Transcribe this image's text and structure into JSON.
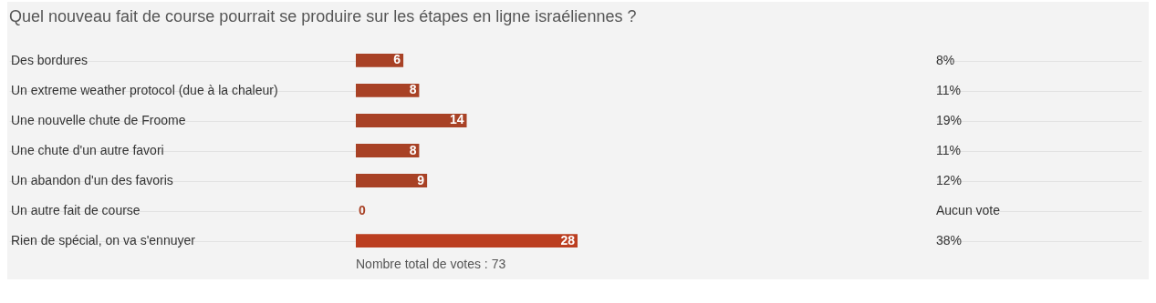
{
  "chart_data": {
    "type": "bar",
    "orientation": "horizontal",
    "title": "Quel nouveau fait de course pourrait se produire sur les étapes en ligne israéliennes ?",
    "categories": [
      "Des bordures",
      "Un extreme weather protocol (due à la chaleur)",
      "Une nouvelle chute de Froome",
      "Une chute d'un autre favori",
      "Un abandon d'un des favoris",
      "Un autre fait de course",
      "Rien de spécial, on va s'ennuyer"
    ],
    "values": [
      6,
      8,
      14,
      8,
      9,
      0,
      28
    ],
    "colors": [
      "#a84125",
      "#a84125",
      "#a84125",
      "#a84125",
      "#a84125",
      "#a84125",
      "#bb3e20"
    ],
    "data_labels": true,
    "grid": "y",
    "annotations": [
      "8%",
      "11%",
      "19%",
      "11%",
      "12%",
      "Aucun vote",
      "38%",
      "Nombre total de votes : 73"
    ]
  }
}
